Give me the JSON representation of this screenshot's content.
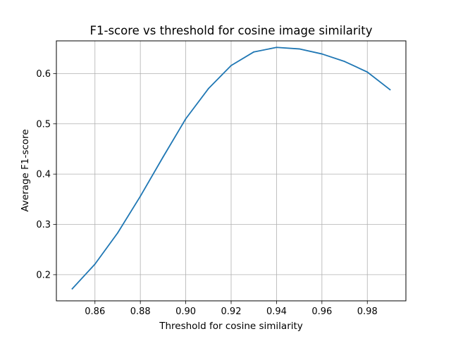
{
  "chart_data": {
    "type": "line",
    "title": "F1-score vs threshold for cosine image similarity",
    "xlabel": "Threshold for cosine similarity",
    "ylabel": "Average F1-score",
    "xlim": [
      0.843,
      0.997
    ],
    "ylim": [
      0.148,
      0.665
    ],
    "grid": true,
    "x_ticks": [
      {
        "value": 0.86,
        "label": "0.86"
      },
      {
        "value": 0.88,
        "label": "0.88"
      },
      {
        "value": 0.9,
        "label": "0.90"
      },
      {
        "value": 0.92,
        "label": "0.92"
      },
      {
        "value": 0.94,
        "label": "0.94"
      },
      {
        "value": 0.96,
        "label": "0.96"
      },
      {
        "value": 0.98,
        "label": "0.98"
      }
    ],
    "y_ticks": [
      {
        "value": 0.2,
        "label": "0.2"
      },
      {
        "value": 0.3,
        "label": "0.3"
      },
      {
        "value": 0.4,
        "label": "0.4"
      },
      {
        "value": 0.5,
        "label": "0.5"
      },
      {
        "value": 0.6,
        "label": "0.6"
      }
    ],
    "series": [
      {
        "color": "#1f77b4",
        "x": [
          0.85,
          0.86,
          0.87,
          0.88,
          0.89,
          0.9,
          0.91,
          0.92,
          0.93,
          0.94,
          0.95,
          0.96,
          0.97,
          0.98,
          0.99
        ],
        "y": [
          0.172,
          0.221,
          0.283,
          0.356,
          0.434,
          0.51,
          0.57,
          0.616,
          0.643,
          0.652,
          0.649,
          0.639,
          0.624,
          0.603,
          0.568
        ]
      }
    ]
  }
}
